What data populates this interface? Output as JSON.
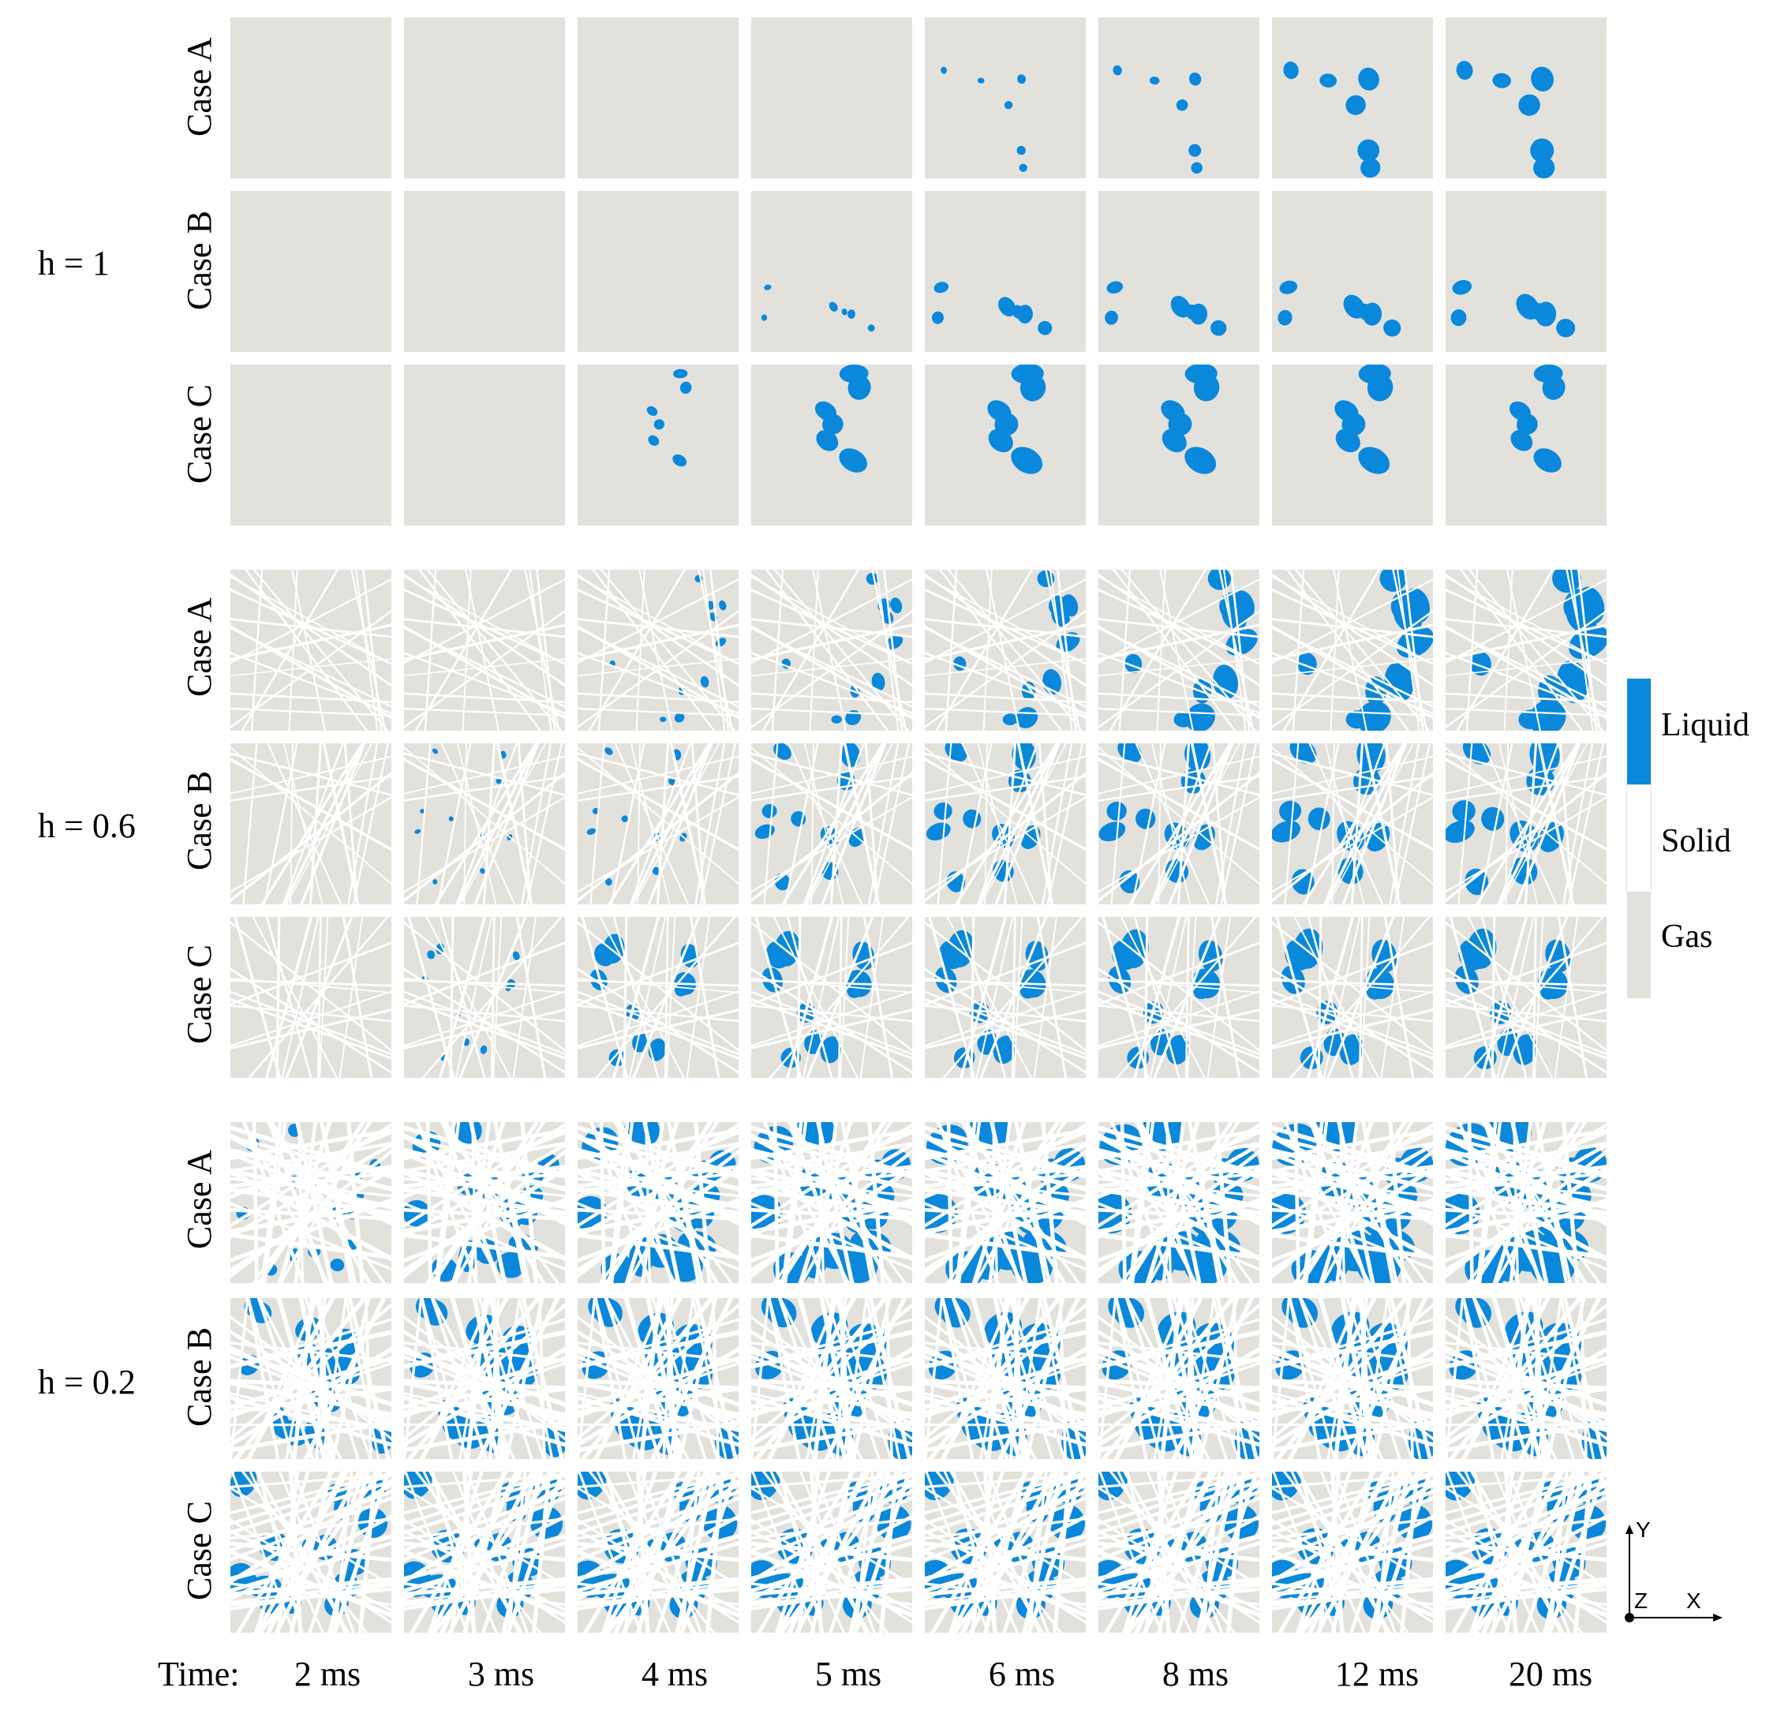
{
  "figure": {
    "time_prefix": "Time:",
    "times": [
      "2 ms",
      "3 ms",
      "4 ms",
      "5 ms",
      "6 ms",
      "8 ms",
      "12 ms",
      "20 ms"
    ],
    "groups": [
      {
        "label": "h = 1",
        "cases": [
          "Case A",
          "Case B",
          "Case C"
        ]
      },
      {
        "label": "h = 0.6",
        "cases": [
          "Case A",
          "Case B",
          "Case C"
        ]
      },
      {
        "label": "h = 0.2",
        "cases": [
          "Case A",
          "Case B",
          "Case C"
        ]
      }
    ],
    "legend": [
      {
        "label": "Liquid",
        "color": "#0a88dc"
      },
      {
        "label": "Solid",
        "color": "#ffffff"
      },
      {
        "label": "Gas",
        "color": "#e3e1dc"
      }
    ],
    "axes": {
      "y": "Y",
      "z": "Z",
      "x": "X"
    },
    "liquid_fraction_approx": {
      "h = 1": {
        "Case A": [
          0,
          0,
          0,
          0,
          0.01,
          0.02,
          0.06,
          0.07
        ],
        "Case B": [
          0,
          0,
          0,
          0.01,
          0.04,
          0.05,
          0.06,
          0.07
        ],
        "Case C": [
          0,
          0,
          0.02,
          0.08,
          0.1,
          0.1,
          0.1,
          0.08
        ]
      },
      "h = 0.6": {
        "Case A": [
          0,
          0,
          0.02,
          0.05,
          0.1,
          0.18,
          0.24,
          0.28
        ],
        "Case B": [
          0,
          0.01,
          0.02,
          0.1,
          0.15,
          0.18,
          0.22,
          0.24
        ],
        "Case C": [
          0,
          0.02,
          0.14,
          0.2,
          0.22,
          0.24,
          0.26,
          0.26
        ]
      },
      "h = 0.2": {
        "Case A": [
          0.06,
          0.25,
          0.42,
          0.48,
          0.55,
          0.58,
          0.62,
          0.64
        ],
        "Case B": [
          0.3,
          0.45,
          0.55,
          0.58,
          0.6,
          0.62,
          0.62,
          0.62
        ],
        "Case C": [
          0.32,
          0.4,
          0.44,
          0.46,
          0.47,
          0.47,
          0.48,
          0.48
        ]
      }
    }
  }
}
